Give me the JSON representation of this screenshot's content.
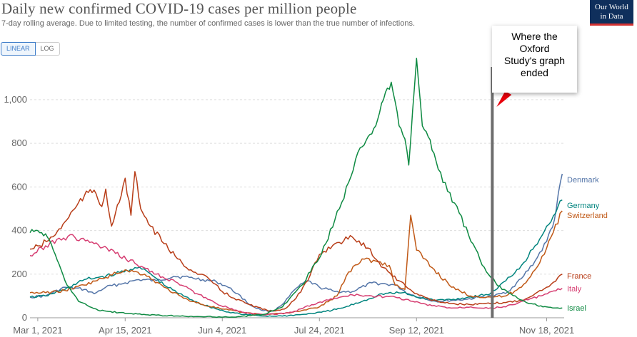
{
  "header": {
    "title": "Daily new confirmed COVID-19 cases per million people",
    "subtitle": "7-day rolling average. Due to limited testing, the number of confirmed cases is lower than the true number of infections."
  },
  "controls": {
    "linear_label": "LINEAR",
    "log_label": "LOG",
    "active": "linear"
  },
  "logo": {
    "line1": "Our World",
    "line2": "in Data",
    "bg": "#0f2f5c",
    "accent": "#d23232"
  },
  "annotation": {
    "text_lines": [
      "Where the",
      "Oxford",
      "Study's graph",
      "ended"
    ],
    "marker_date": "2021-10-21",
    "arrow_color": "#e8000b",
    "line_color": "#6d6d6d"
  },
  "chart_data": {
    "type": "line",
    "title": "Daily new confirmed COVID-19 cases per million people",
    "subtitle": "7-day rolling average. Due to limited testing, the number of confirmed cases is lower than the true number of infections.",
    "x_range": [
      "2021-02-25",
      "2021-11-27"
    ],
    "ylim": [
      0,
      1150
    ],
    "y_ticks": [
      0,
      200,
      400,
      600,
      800,
      1000
    ],
    "y_tick_labels": [
      "0",
      "200",
      "400",
      "600",
      "800",
      "1,000"
    ],
    "x_ticks": [
      {
        "date": "2021-03-01",
        "label": "Mar 1, 2021"
      },
      {
        "date": "2021-04-15",
        "label": "Apr 15, 2021"
      },
      {
        "date": "2021-06-04",
        "label": "Jun 4, 2021"
      },
      {
        "date": "2021-07-24",
        "label": "Jul 24, 2021"
      },
      {
        "date": "2021-09-12",
        "label": "Sep 12, 2021"
      },
      {
        "date": "2021-11-18",
        "label": "Nov 18, 2021"
      }
    ],
    "grid": "horizontal-dashed",
    "series": [
      {
        "name": "Denmark",
        "color": "#5475a8",
        "points": [
          [
            "2021-02-25",
            95
          ],
          [
            "2021-03-05",
            100
          ],
          [
            "2021-03-15",
            140
          ],
          [
            "2021-03-25",
            130
          ],
          [
            "2021-03-30",
            110
          ],
          [
            "2021-04-05",
            140
          ],
          [
            "2021-04-15",
            160
          ],
          [
            "2021-04-22",
            175
          ],
          [
            "2021-05-01",
            170
          ],
          [
            "2021-05-10",
            190
          ],
          [
            "2021-05-18",
            185
          ],
          [
            "2021-05-25",
            175
          ],
          [
            "2021-06-01",
            165
          ],
          [
            "2021-06-06",
            145
          ],
          [
            "2021-06-12",
            110
          ],
          [
            "2021-06-18",
            60
          ],
          [
            "2021-06-24",
            35
          ],
          [
            "2021-06-30",
            30
          ],
          [
            "2021-07-06",
            70
          ],
          [
            "2021-07-12",
            135
          ],
          [
            "2021-07-18",
            170
          ],
          [
            "2021-07-24",
            140
          ],
          [
            "2021-08-01",
            120
          ],
          [
            "2021-08-10",
            120
          ],
          [
            "2021-08-20",
            160
          ],
          [
            "2021-09-01",
            150
          ],
          [
            "2021-09-08",
            110
          ],
          [
            "2021-09-15",
            90
          ],
          [
            "2021-09-22",
            75
          ],
          [
            "2021-10-01",
            80
          ],
          [
            "2021-10-08",
            85
          ],
          [
            "2021-10-15",
            95
          ],
          [
            "2021-10-22",
            100
          ],
          [
            "2021-10-29",
            120
          ],
          [
            "2021-11-05",
            180
          ],
          [
            "2021-11-12",
            260
          ],
          [
            "2021-11-18",
            350
          ],
          [
            "2021-11-22",
            450
          ],
          [
            "2021-11-26",
            660
          ]
        ]
      },
      {
        "name": "Germany",
        "color": "#00847e",
        "points": [
          [
            "2021-02-25",
            95
          ],
          [
            "2021-03-05",
            100
          ],
          [
            "2021-03-15",
            130
          ],
          [
            "2021-03-25",
            175
          ],
          [
            "2021-04-01",
            185
          ],
          [
            "2021-04-10",
            200
          ],
          [
            "2021-04-20",
            230
          ],
          [
            "2021-04-26",
            215
          ],
          [
            "2021-05-05",
            150
          ],
          [
            "2021-05-15",
            100
          ],
          [
            "2021-05-25",
            60
          ],
          [
            "2021-06-05",
            30
          ],
          [
            "2021-06-15",
            15
          ],
          [
            "2021-06-25",
            8
          ],
          [
            "2021-07-05",
            8
          ],
          [
            "2021-07-15",
            15
          ],
          [
            "2021-07-25",
            25
          ],
          [
            "2021-08-05",
            45
          ],
          [
            "2021-08-15",
            75
          ],
          [
            "2021-08-25",
            110
          ],
          [
            "2021-09-05",
            115
          ],
          [
            "2021-09-12",
            95
          ],
          [
            "2021-09-22",
            80
          ],
          [
            "2021-10-01",
            85
          ],
          [
            "2021-10-10",
            95
          ],
          [
            "2021-10-20",
            110
          ],
          [
            "2021-10-28",
            170
          ],
          [
            "2021-11-05",
            240
          ],
          [
            "2021-11-12",
            330
          ],
          [
            "2021-11-18",
            420
          ],
          [
            "2021-11-26",
            540
          ]
        ]
      },
      {
        "name": "Switzerland",
        "color": "#c05917",
        "points": [
          [
            "2021-02-25",
            115
          ],
          [
            "2021-03-05",
            115
          ],
          [
            "2021-03-15",
            125
          ],
          [
            "2021-03-25",
            150
          ],
          [
            "2021-04-05",
            185
          ],
          [
            "2021-04-15",
            220
          ],
          [
            "2021-04-25",
            200
          ],
          [
            "2021-05-05",
            140
          ],
          [
            "2021-05-15",
            90
          ],
          [
            "2021-05-25",
            60
          ],
          [
            "2021-06-04",
            40
          ],
          [
            "2021-06-14",
            25
          ],
          [
            "2021-06-24",
            15
          ],
          [
            "2021-07-04",
            20
          ],
          [
            "2021-07-14",
            30
          ],
          [
            "2021-07-24",
            50
          ],
          [
            "2021-08-02",
            100
          ],
          [
            "2021-08-08",
            210
          ],
          [
            "2021-08-15",
            270
          ],
          [
            "2021-08-22",
            260
          ],
          [
            "2021-08-29",
            240
          ],
          [
            "2021-09-01",
            150
          ],
          [
            "2021-09-06",
            130
          ],
          [
            "2021-09-09",
            470
          ],
          [
            "2021-09-12",
            310
          ],
          [
            "2021-09-20",
            230
          ],
          [
            "2021-09-30",
            140
          ],
          [
            "2021-10-10",
            100
          ],
          [
            "2021-10-20",
            95
          ],
          [
            "2021-10-28",
            100
          ],
          [
            "2021-11-05",
            140
          ],
          [
            "2021-11-12",
            220
          ],
          [
            "2021-11-18",
            320
          ],
          [
            "2021-11-26",
            490
          ]
        ]
      },
      {
        "name": "France",
        "color": "#b83d18",
        "points": [
          [
            "2021-02-25",
            315
          ],
          [
            "2021-03-02",
            330
          ],
          [
            "2021-03-10",
            380
          ],
          [
            "2021-03-15",
            440
          ],
          [
            "2021-03-20",
            500
          ],
          [
            "2021-03-25",
            560
          ],
          [
            "2021-03-30",
            585
          ],
          [
            "2021-04-03",
            510
          ],
          [
            "2021-04-05",
            590
          ],
          [
            "2021-04-08",
            420
          ],
          [
            "2021-04-12",
            530
          ],
          [
            "2021-04-15",
            640
          ],
          [
            "2021-04-18",
            470
          ],
          [
            "2021-04-20",
            670
          ],
          [
            "2021-04-23",
            500
          ],
          [
            "2021-04-28",
            420
          ],
          [
            "2021-05-05",
            340
          ],
          [
            "2021-05-12",
            270
          ],
          [
            "2021-05-20",
            210
          ],
          [
            "2021-05-28",
            180
          ],
          [
            "2021-06-04",
            120
          ],
          [
            "2021-06-10",
            90
          ],
          [
            "2021-06-18",
            60
          ],
          [
            "2021-06-28",
            30
          ],
          [
            "2021-07-06",
            40
          ],
          [
            "2021-07-12",
            90
          ],
          [
            "2021-07-18",
            170
          ],
          [
            "2021-07-24",
            290
          ],
          [
            "2021-08-01",
            340
          ],
          [
            "2021-08-10",
            370
          ],
          [
            "2021-08-18",
            320
          ],
          [
            "2021-08-26",
            230
          ],
          [
            "2021-09-03",
            170
          ],
          [
            "2021-09-10",
            120
          ],
          [
            "2021-09-20",
            80
          ],
          [
            "2021-09-30",
            65
          ],
          [
            "2021-10-10",
            60
          ],
          [
            "2021-10-20",
            65
          ],
          [
            "2021-10-28",
            70
          ],
          [
            "2021-11-05",
            80
          ],
          [
            "2021-11-12",
            110
          ],
          [
            "2021-11-18",
            140
          ],
          [
            "2021-11-26",
            200
          ]
        ]
      },
      {
        "name": "Italy",
        "color": "#d63e72",
        "points": [
          [
            "2021-02-25",
            285
          ],
          [
            "2021-03-05",
            330
          ],
          [
            "2021-03-12",
            365
          ],
          [
            "2021-03-20",
            370
          ],
          [
            "2021-03-30",
            340
          ],
          [
            "2021-04-10",
            295
          ],
          [
            "2021-04-20",
            250
          ],
          [
            "2021-05-01",
            200
          ],
          [
            "2021-05-12",
            160
          ],
          [
            "2021-05-22",
            110
          ],
          [
            "2021-06-01",
            65
          ],
          [
            "2021-06-10",
            35
          ],
          [
            "2021-06-20",
            18
          ],
          [
            "2021-07-01",
            15
          ],
          [
            "2021-07-10",
            25
          ],
          [
            "2021-07-20",
            60
          ],
          [
            "2021-08-01",
            90
          ],
          [
            "2021-08-10",
            105
          ],
          [
            "2021-08-20",
            100
          ],
          [
            "2021-09-01",
            95
          ],
          [
            "2021-09-10",
            75
          ],
          [
            "2021-09-20",
            55
          ],
          [
            "2021-10-01",
            45
          ],
          [
            "2021-10-10",
            50
          ],
          [
            "2021-10-20",
            45
          ],
          [
            "2021-10-28",
            50
          ],
          [
            "2021-11-05",
            75
          ],
          [
            "2021-11-15",
            100
          ],
          [
            "2021-11-26",
            135
          ]
        ]
      },
      {
        "name": "Israel",
        "color": "#0e8a42",
        "points": [
          [
            "2021-02-25",
            390
          ],
          [
            "2021-03-01",
            400
          ],
          [
            "2021-03-05",
            385
          ],
          [
            "2021-03-10",
            290
          ],
          [
            "2021-03-15",
            170
          ],
          [
            "2021-03-22",
            75
          ],
          [
            "2021-04-01",
            35
          ],
          [
            "2021-04-15",
            20
          ],
          [
            "2021-05-01",
            12
          ],
          [
            "2021-05-20",
            5
          ],
          [
            "2021-06-10",
            3
          ],
          [
            "2021-06-25",
            15
          ],
          [
            "2021-07-05",
            50
          ],
          [
            "2021-07-15",
            150
          ],
          [
            "2021-07-25",
            290
          ],
          [
            "2021-08-01",
            450
          ],
          [
            "2021-08-08",
            620
          ],
          [
            "2021-08-14",
            780
          ],
          [
            "2021-08-18",
            830
          ],
          [
            "2021-08-22",
            880
          ],
          [
            "2021-08-26",
            1000
          ],
          [
            "2021-08-30",
            1080
          ],
          [
            "2021-09-01",
            990
          ],
          [
            "2021-09-03",
            880
          ],
          [
            "2021-09-06",
            820
          ],
          [
            "2021-09-08",
            700
          ],
          [
            "2021-09-12",
            1190
          ],
          [
            "2021-09-15",
            880
          ],
          [
            "2021-09-18",
            830
          ],
          [
            "2021-09-22",
            720
          ],
          [
            "2021-09-28",
            580
          ],
          [
            "2021-10-04",
            480
          ],
          [
            "2021-10-10",
            350
          ],
          [
            "2021-10-18",
            210
          ],
          [
            "2021-10-26",
            130
          ],
          [
            "2021-11-03",
            90
          ],
          [
            "2021-11-10",
            65
          ],
          [
            "2021-11-15",
            55
          ],
          [
            "2021-11-20",
            48
          ],
          [
            "2021-11-26",
            45
          ]
        ]
      }
    ]
  }
}
